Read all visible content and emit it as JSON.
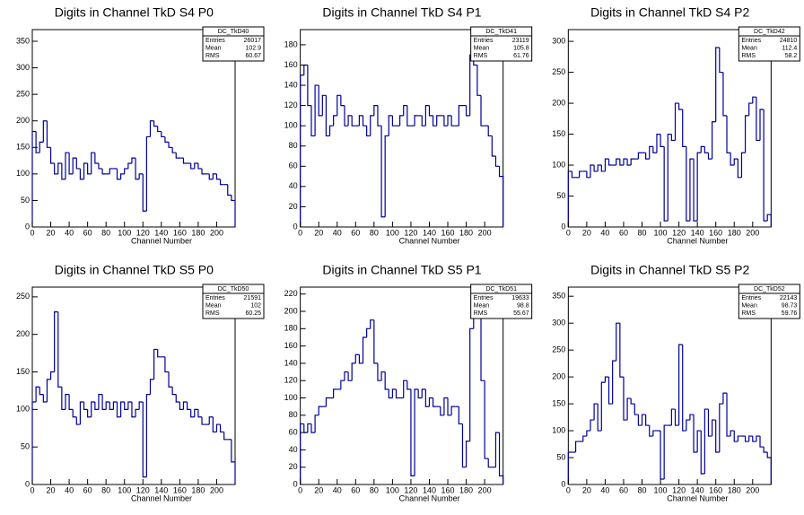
{
  "chart_data": [
    {
      "type": "histogram",
      "title": "Digits in Channel TkD S4 P0",
      "x_label": "Channel Number",
      "color": "#000099",
      "stats": {
        "title": "DC_TkD40",
        "rows": [
          {
            "label": "Entries",
            "value": 26017
          },
          {
            "label": "Mean",
            "value": 102.9
          },
          {
            "label": "RMS",
            "value": 60.67
          }
        ]
      },
      "bins": [
        0,
        4,
        8,
        12,
        16,
        20,
        24,
        28,
        32,
        36,
        40,
        44,
        48,
        52,
        56,
        60,
        64,
        68,
        72,
        76,
        80,
        84,
        88,
        92,
        96,
        100,
        104,
        108,
        112,
        116,
        120,
        124,
        128,
        132,
        136,
        140,
        144,
        148,
        152,
        156,
        160,
        164,
        168,
        172,
        176,
        180,
        184,
        188,
        192,
        196,
        200,
        204,
        208,
        212,
        216,
        220
      ],
      "values": [
        180,
        140,
        160,
        200,
        150,
        120,
        100,
        120,
        90,
        140,
        100,
        130,
        110,
        90,
        120,
        100,
        140,
        120,
        110,
        100,
        100,
        110,
        110,
        90,
        100,
        110,
        120,
        130,
        90,
        100,
        30,
        170,
        200,
        190,
        180,
        170,
        160,
        150,
        140,
        130,
        130,
        120,
        120,
        110,
        120,
        110,
        100,
        100,
        90,
        100,
        90,
        80,
        80,
        60,
        50
      ],
      "xlim": [
        0,
        220
      ],
      "xticks": [
        0,
        20,
        40,
        60,
        80,
        100,
        120,
        140,
        160,
        180,
        200
      ],
      "ylim": [
        0,
        372
      ],
      "yticks": [
        0,
        50,
        100,
        150,
        200,
        250,
        300,
        350
      ]
    },
    {
      "type": "histogram",
      "title": "Digits in Channel TkD S4 P1",
      "x_label": "Channel Number",
      "color": "#000099",
      "stats": {
        "title": "DC_TkD41",
        "rows": [
          {
            "label": "Entries",
            "value": 23119
          },
          {
            "label": "Mean",
            "value": 105.8
          },
          {
            "label": "RMS",
            "value": 61.76
          }
        ]
      },
      "bins": [
        0,
        4,
        8,
        12,
        16,
        20,
        24,
        28,
        32,
        36,
        40,
        44,
        48,
        52,
        56,
        60,
        64,
        68,
        72,
        76,
        80,
        84,
        88,
        92,
        96,
        100,
        104,
        108,
        112,
        116,
        120,
        124,
        128,
        132,
        136,
        140,
        144,
        148,
        152,
        156,
        160,
        164,
        168,
        172,
        176,
        180,
        184,
        188,
        192,
        196,
        200,
        204,
        208,
        212,
        216,
        220
      ],
      "values": [
        150,
        160,
        120,
        90,
        140,
        110,
        130,
        90,
        100,
        110,
        130,
        120,
        100,
        110,
        100,
        100,
        110,
        100,
        90,
        110,
        120,
        100,
        10,
        90,
        110,
        100,
        100,
        110,
        120,
        100,
        100,
        110,
        110,
        100,
        120,
        110,
        100,
        110,
        110,
        100,
        110,
        100,
        100,
        120,
        120,
        110,
        170,
        160,
        130,
        100,
        100,
        90,
        70,
        60,
        50
      ],
      "xlim": [
        0,
        220
      ],
      "xticks": [
        0,
        20,
        40,
        60,
        80,
        100,
        120,
        140,
        160,
        180,
        200
      ],
      "ylim": [
        0,
        195
      ],
      "yticks": [
        0,
        20,
        40,
        60,
        80,
        100,
        120,
        140,
        160,
        180
      ]
    },
    {
      "type": "histogram",
      "title": "Digits in Channel TkD S4 P2",
      "x_label": "Channel Number",
      "color": "#000099",
      "stats": {
        "title": "DC_TkD42",
        "rows": [
          {
            "label": "Entries",
            "value": 24810
          },
          {
            "label": "Mean",
            "value": 112.4
          },
          {
            "label": "RMS",
            "value": 58.2
          }
        ]
      },
      "bins": [
        0,
        4,
        8,
        12,
        16,
        20,
        24,
        28,
        32,
        36,
        40,
        44,
        48,
        52,
        56,
        60,
        64,
        68,
        72,
        76,
        80,
        84,
        88,
        92,
        96,
        100,
        104,
        108,
        112,
        116,
        120,
        124,
        128,
        132,
        136,
        140,
        144,
        148,
        152,
        156,
        160,
        164,
        168,
        172,
        176,
        180,
        184,
        188,
        192,
        196,
        200,
        204,
        208,
        212,
        216,
        220
      ],
      "values": [
        90,
        80,
        80,
        90,
        90,
        80,
        100,
        90,
        100,
        90,
        110,
        100,
        100,
        110,
        100,
        110,
        100,
        110,
        110,
        120,
        120,
        110,
        130,
        120,
        150,
        130,
        10,
        150,
        140,
        200,
        190,
        130,
        10,
        110,
        10,
        120,
        130,
        120,
        110,
        170,
        290,
        250,
        180,
        120,
        100,
        110,
        80,
        120,
        180,
        200,
        210,
        140,
        190,
        10,
        20
      ],
      "xlim": [
        0,
        220
      ],
      "xticks": [
        0,
        20,
        40,
        60,
        80,
        100,
        120,
        140,
        160,
        180,
        200
      ],
      "ylim": [
        0,
        319
      ],
      "yticks": [
        0,
        50,
        100,
        150,
        200,
        250,
        300
      ]
    },
    {
      "type": "histogram",
      "title": "Digits in Channel TkD S5 P0",
      "x_label": "Channel Number",
      "color": "#000099",
      "stats": {
        "title": "DC_TkD50",
        "rows": [
          {
            "label": "Entries",
            "value": 21591
          },
          {
            "label": "Mean",
            "value": 102
          },
          {
            "label": "RMS",
            "value": 60.25
          }
        ]
      },
      "bins": [
        0,
        4,
        8,
        12,
        16,
        20,
        24,
        28,
        32,
        36,
        40,
        44,
        48,
        52,
        56,
        60,
        64,
        68,
        72,
        76,
        80,
        84,
        88,
        92,
        96,
        100,
        104,
        108,
        112,
        116,
        120,
        124,
        128,
        132,
        136,
        140,
        144,
        148,
        152,
        156,
        160,
        164,
        168,
        172,
        176,
        180,
        184,
        188,
        192,
        196,
        200,
        204,
        208,
        212,
        216,
        220
      ],
      "values": [
        110,
        130,
        120,
        110,
        140,
        150,
        230,
        130,
        100,
        120,
        100,
        90,
        80,
        110,
        100,
        90,
        110,
        100,
        120,
        100,
        110,
        100,
        110,
        90,
        110,
        100,
        110,
        90,
        100,
        110,
        10,
        120,
        140,
        180,
        170,
        170,
        150,
        130,
        120,
        110,
        100,
        110,
        100,
        90,
        100,
        90,
        80,
        80,
        90,
        70,
        80,
        70,
        60,
        60,
        30
      ],
      "xlim": [
        0,
        220
      ],
      "xticks": [
        0,
        20,
        40,
        60,
        80,
        100,
        120,
        140,
        160,
        180,
        200
      ],
      "ylim": [
        0,
        263
      ],
      "yticks": [
        0,
        50,
        100,
        150,
        200,
        250
      ]
    },
    {
      "type": "histogram",
      "title": "Digits in Channel TkD S5 P1",
      "x_label": "Channel Number",
      "color": "#000099",
      "stats": {
        "title": "DC_TkD51",
        "rows": [
          {
            "label": "Entries",
            "value": 19633
          },
          {
            "label": "Mean",
            "value": 98.8
          },
          {
            "label": "RMS",
            "value": 55.67
          }
        ]
      },
      "bins": [
        0,
        4,
        8,
        12,
        16,
        20,
        24,
        28,
        32,
        36,
        40,
        44,
        48,
        52,
        56,
        60,
        64,
        68,
        72,
        76,
        80,
        84,
        88,
        92,
        96,
        100,
        104,
        108,
        112,
        116,
        120,
        124,
        128,
        132,
        136,
        140,
        144,
        148,
        152,
        156,
        160,
        164,
        168,
        172,
        176,
        180,
        184,
        188,
        192,
        196,
        200,
        204,
        208,
        212,
        216,
        220
      ],
      "values": [
        70,
        60,
        70,
        60,
        80,
        90,
        90,
        100,
        100,
        110,
        110,
        120,
        130,
        120,
        140,
        150,
        140,
        170,
        180,
        190,
        140,
        120,
        130,
        110,
        100,
        110,
        100,
        100,
        120,
        110,
        10,
        110,
        100,
        110,
        90,
        100,
        90,
        90,
        80,
        100,
        80,
        90,
        90,
        70,
        20,
        50,
        180,
        210,
        200,
        120,
        30,
        20,
        20,
        60,
        10
      ],
      "xlim": [
        0,
        220
      ],
      "xticks": [
        0,
        20,
        40,
        60,
        80,
        100,
        120,
        140,
        160,
        180,
        200
      ],
      "ylim": [
        0,
        228
      ],
      "yticks": [
        0,
        20,
        40,
        60,
        80,
        100,
        120,
        140,
        160,
        180,
        200,
        220
      ]
    },
    {
      "type": "histogram",
      "title": "Digits in Channel TkD S5 P2",
      "x_label": "Channel Number",
      "color": "#000099",
      "stats": {
        "title": "DC_TkD52",
        "rows": [
          {
            "label": "Entries",
            "value": 22143
          },
          {
            "label": "Mean",
            "value": 98.73
          },
          {
            "label": "RMS",
            "value": 59.76
          }
        ]
      },
      "bins": [
        0,
        4,
        8,
        12,
        16,
        20,
        24,
        28,
        32,
        36,
        40,
        44,
        48,
        52,
        56,
        60,
        64,
        68,
        72,
        76,
        80,
        84,
        88,
        92,
        96,
        100,
        104,
        108,
        112,
        116,
        120,
        124,
        128,
        132,
        136,
        140,
        144,
        148,
        152,
        156,
        160,
        164,
        168,
        172,
        176,
        180,
        184,
        188,
        192,
        196,
        200,
        204,
        208,
        212,
        216,
        220
      ],
      "values": [
        60,
        60,
        80,
        80,
        90,
        100,
        120,
        150,
        100,
        190,
        200,
        150,
        230,
        300,
        200,
        120,
        160,
        150,
        130,
        110,
        130,
        110,
        90,
        100,
        100,
        10,
        110,
        110,
        140,
        110,
        260,
        100,
        120,
        130,
        60,
        100,
        20,
        140,
        90,
        120,
        60,
        150,
        170,
        90,
        100,
        80,
        90,
        90,
        80,
        90,
        80,
        90,
        70,
        60,
        50
      ],
      "xlim": [
        0,
        220
      ],
      "xticks": [
        0,
        20,
        40,
        60,
        80,
        100,
        120,
        140,
        160,
        180,
        200
      ],
      "ylim": [
        0,
        367
      ],
      "yticks": [
        0,
        50,
        100,
        150,
        200,
        250,
        300,
        350
      ]
    }
  ]
}
